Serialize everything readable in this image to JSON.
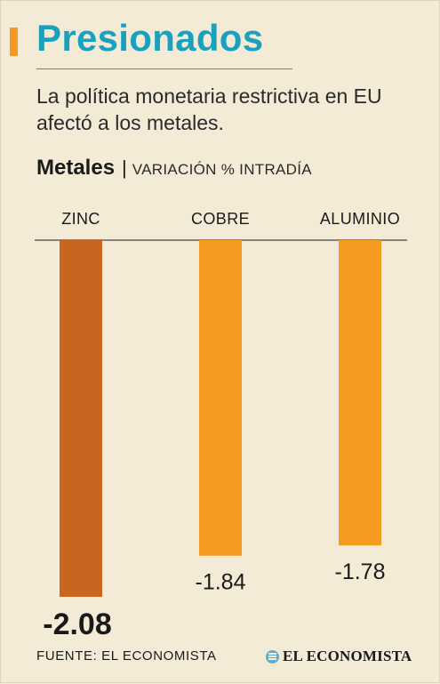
{
  "header": {
    "title": "Presionados",
    "subtitle": "La política monetaria restrictiva en EU afectó a los metales."
  },
  "chart_header": {
    "name": "Metales",
    "separator": "|",
    "description": "VARIACIÓN % INTRADÍA"
  },
  "chart_data": {
    "type": "bar",
    "categories": [
      "ZINC",
      "COBRE",
      "ALUMINIO"
    ],
    "values": [
      -2.08,
      -1.84,
      -1.78
    ],
    "value_labels": [
      "-2.08",
      "-1.84",
      "-1.78"
    ],
    "highlight_index": 0,
    "ylim": [
      -2.08,
      0
    ],
    "grid": false,
    "legend": "none",
    "colors": {
      "highlight": "#c8651e",
      "default": "#f59c20"
    }
  },
  "footer": {
    "source": "FUENTE: EL ECONOMISTA",
    "logo_text": "EL ECONOMISTA"
  },
  "colors": {
    "background": "#f4ebd7",
    "title": "#1aa1bf",
    "accent": "#f39a1f"
  }
}
